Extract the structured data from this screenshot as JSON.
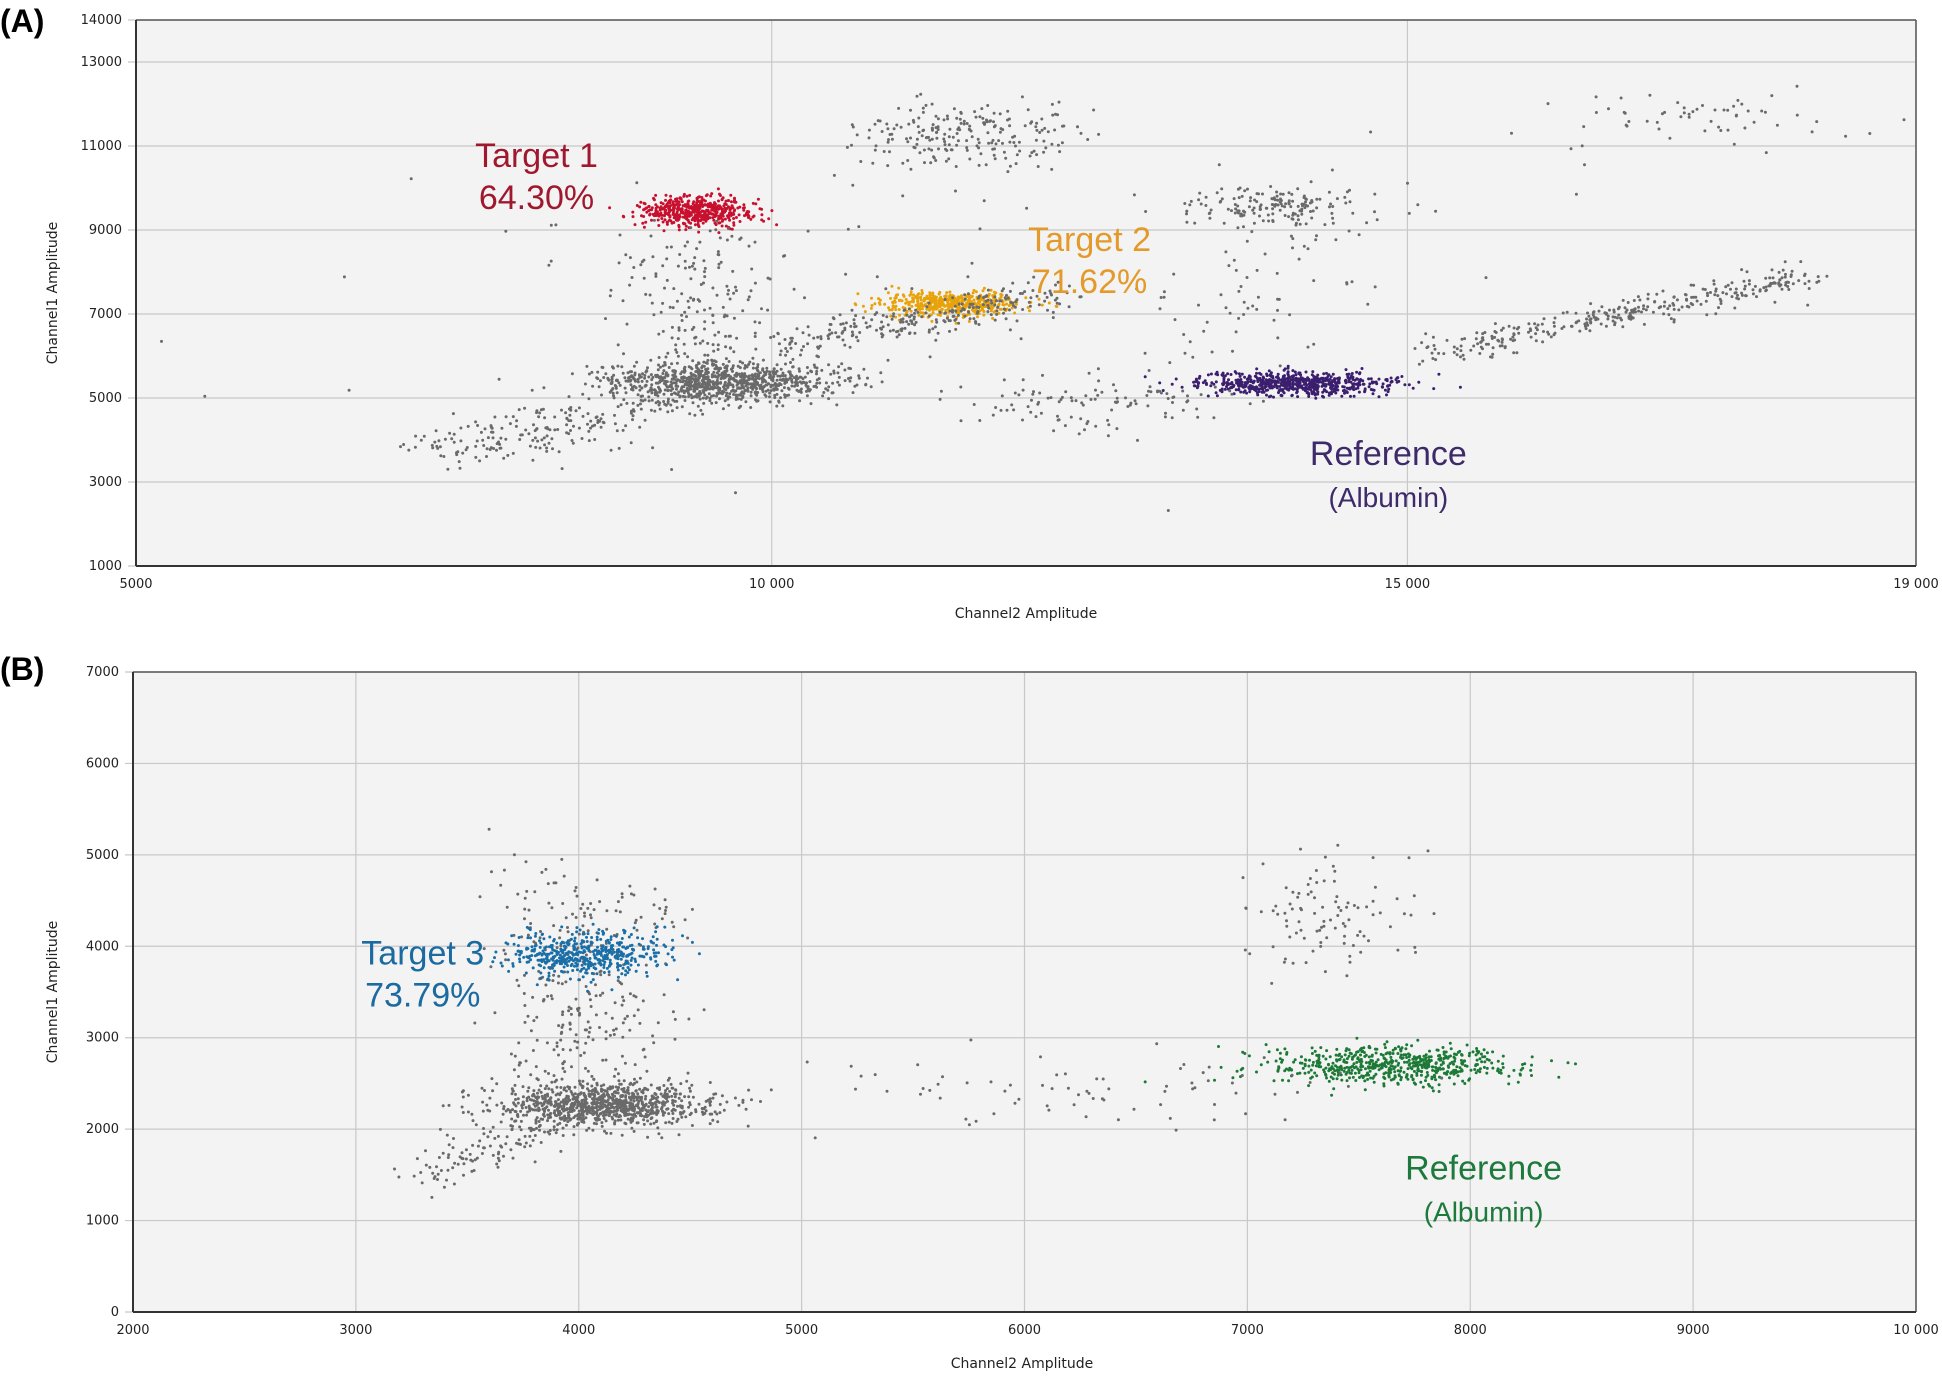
{
  "chart_data": [
    {
      "type": "scatter",
      "panel_label": "(A)",
      "xlabel": "Channel2 Amplitude",
      "ylabel": "Channel1 Amplitude",
      "xlim": [
        5000,
        19000
      ],
      "ylim": [
        1000,
        14000
      ],
      "xticks": [
        {
          "v": 5000,
          "label": "5000"
        },
        {
          "v": 10000,
          "label": "10 000"
        },
        {
          "v": 15000,
          "label": "15 000"
        },
        {
          "v": 19000,
          "label": "19 000"
        }
      ],
      "yticks": [
        {
          "v": 14000,
          "label": "14000"
        },
        {
          "v": 13000,
          "label": "13000"
        },
        {
          "v": 11000,
          "label": "11000"
        },
        {
          "v": 9000,
          "label": "9000"
        },
        {
          "v": 7000,
          "label": "7000"
        },
        {
          "v": 5000,
          "label": "5000"
        },
        {
          "v": 3000,
          "label": "3000"
        },
        {
          "v": 1000,
          "label": "1000"
        }
      ],
      "grid": true,
      "clusters": [
        {
          "name": "negative",
          "color": "#6a6a6a",
          "center": [
            9600,
            5400
          ],
          "spread": [
            450,
            230
          ],
          "count": 900
        },
        {
          "name": "negative-tail",
          "color": "#6a6a6a",
          "from": [
            7400,
            3700
          ],
          "to": [
            9700,
            5300
          ],
          "spread": [
            250,
            250
          ],
          "count": 260
        },
        {
          "name": "target1",
          "color": "#c8102e",
          "center": [
            9400,
            9450
          ],
          "spread": [
            230,
            180
          ],
          "count": 500
        },
        {
          "name": "target1-rain",
          "color": "#6a6a6a",
          "from": [
            9400,
            6000
          ],
          "to": [
            9400,
            9000
          ],
          "spread": [
            330,
            200
          ],
          "count": 170
        },
        {
          "name": "target2",
          "color": "#e8a30a",
          "center": [
            11400,
            7250
          ],
          "spread": [
            280,
            140
          ],
          "count": 500
        },
        {
          "name": "target2-rain",
          "color": "#6a6a6a",
          "from": [
            10200,
            6300
          ],
          "to": [
            12200,
            7500
          ],
          "spread": [
            180,
            180
          ],
          "count": 260
        },
        {
          "name": "double-upper",
          "color": "#6a6a6a",
          "center": [
            11500,
            11250
          ],
          "spread": [
            420,
            420
          ],
          "count": 220
        },
        {
          "name": "double-mid",
          "color": "#6a6a6a",
          "center": [
            14000,
            9550
          ],
          "spread": [
            400,
            250
          ],
          "count": 170
        },
        {
          "name": "double-mid-rain",
          "color": "#6a6a6a",
          "from": [
            13600,
            6200
          ],
          "to": [
            14200,
            9000
          ],
          "spread": [
            350,
            500
          ],
          "count": 60
        },
        {
          "name": "reference",
          "color": "#3b1f6e",
          "center": [
            14100,
            5350
          ],
          "spread": [
            380,
            140
          ],
          "count": 650
        },
        {
          "name": "reference-rain",
          "color": "#6a6a6a",
          "from": [
            11700,
            4700
          ],
          "to": [
            13500,
            5100
          ],
          "spread": [
            350,
            300
          ],
          "count": 110
        },
        {
          "name": "double-right",
          "color": "#6a6a6a",
          "from": [
            15200,
            6100
          ],
          "to": [
            18200,
            7900
          ],
          "spread": [
            150,
            180
          ],
          "count": 330
        },
        {
          "name": "triple",
          "color": "#6a6a6a",
          "center": [
            17200,
            11700
          ],
          "spread": [
            650,
            400
          ],
          "count": 60
        },
        {
          "name": "noise",
          "color": "#6a6a6a",
          "center": [
            10500,
            7500
          ],
          "spread": [
            2500,
            2200
          ],
          "count": 70
        }
      ],
      "annotations": [
        {
          "lines": [
            "Target 1",
            "64.30%"
          ],
          "color": "#a0182e",
          "x": 8150,
          "y": 10500
        },
        {
          "lines": [
            "Target 2",
            "71.62%"
          ],
          "color": "#e39a2b",
          "x": 12500,
          "y": 8500
        },
        {
          "lines": [
            "Reference",
            "(Albumin)"
          ],
          "color": "#3e2a6a",
          "x": 14850,
          "y": 3400
        }
      ]
    },
    {
      "type": "scatter",
      "panel_label": "(B)",
      "xlabel": "Channel2 Amplitude",
      "ylabel": "Channel1 Amplitude",
      "xlim": [
        2000,
        10000
      ],
      "ylim": [
        0,
        7000
      ],
      "xticks": [
        {
          "v": 2000,
          "label": "2000"
        },
        {
          "v": 3000,
          "label": "3000"
        },
        {
          "v": 4000,
          "label": "4000"
        },
        {
          "v": 5000,
          "label": "5000"
        },
        {
          "v": 6000,
          "label": "6000"
        },
        {
          "v": 7000,
          "label": "7000"
        },
        {
          "v": 8000,
          "label": "8000"
        },
        {
          "v": 9000,
          "label": "9000"
        },
        {
          "v": 10000,
          "label": "10 000"
        }
      ],
      "yticks": [
        {
          "v": 0,
          "label": "0"
        },
        {
          "v": 1000,
          "label": "1000"
        },
        {
          "v": 2000,
          "label": "2000"
        },
        {
          "v": 3000,
          "label": "3000"
        },
        {
          "v": 4000,
          "label": "4000"
        },
        {
          "v": 5000,
          "label": "5000"
        },
        {
          "v": 6000,
          "label": "6000"
        },
        {
          "v": 7000,
          "label": "7000"
        }
      ],
      "grid": true,
      "clusters": [
        {
          "name": "negative",
          "color": "#6a6a6a",
          "center": [
            4100,
            2270
          ],
          "spread": [
            230,
            120
          ],
          "count": 1000
        },
        {
          "name": "negative-tail",
          "color": "#6a6a6a",
          "from": [
            3300,
            1500
          ],
          "to": [
            3900,
            2050
          ],
          "spread": [
            90,
            90
          ],
          "count": 120
        },
        {
          "name": "target3-rain",
          "color": "#6a6a6a",
          "from": [
            4000,
            2500
          ],
          "to": [
            4000,
            4700
          ],
          "spread": [
            200,
            200
          ],
          "count": 300
        },
        {
          "name": "target3",
          "color": "#1a6fa8",
          "center": [
            4050,
            3920
          ],
          "spread": [
            170,
            120
          ],
          "count": 500
        },
        {
          "name": "reference",
          "color": "#1d7a36",
          "center": [
            7650,
            2700
          ],
          "spread": [
            280,
            110
          ],
          "count": 600
        },
        {
          "name": "double",
          "color": "#6a6a6a",
          "center": [
            7350,
            4350
          ],
          "spread": [
            220,
            320
          ],
          "count": 100
        },
        {
          "name": "reference-rain",
          "color": "#6a6a6a",
          "from": [
            5100,
            2300
          ],
          "to": [
            7000,
            2500
          ],
          "spread": [
            500,
            220
          ],
          "count": 80
        }
      ],
      "annotations": [
        {
          "lines": [
            "Target 3",
            "73.79%"
          ],
          "color": "#1b6aa0",
          "x": 3300,
          "y": 3800
        },
        {
          "lines": [
            "Reference",
            "(Albumin)"
          ],
          "color": "#1e7a3c",
          "x": 8060,
          "y": 1450
        }
      ]
    }
  ]
}
